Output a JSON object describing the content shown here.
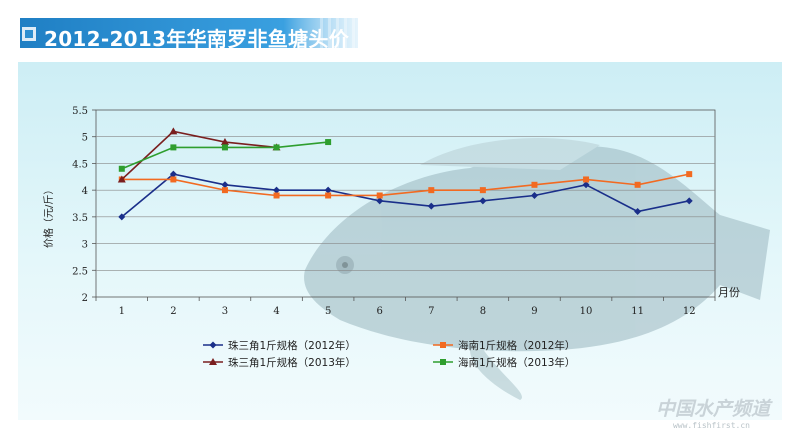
{
  "page": {
    "title": "2012-2013年华南罗非鱼塘头价",
    "watermark": "中国水产频道",
    "watermark_url": "www.fishfirst.cn"
  },
  "colors": {
    "banner": "#2e8fd0",
    "banner_light": "#8fc9ee",
    "panel": "#d4f0f6",
    "axis": "#555555",
    "grid": "#888888"
  },
  "chart_data": {
    "type": "line",
    "title": "2012-2013年华南罗非鱼塘头价",
    "xlabel": "月份",
    "ylabel": "价格（元/斤）",
    "x": [
      1,
      2,
      3,
      4,
      5,
      6,
      7,
      8,
      9,
      10,
      11,
      12
    ],
    "x_tick_labels": [
      "1",
      "2",
      "3",
      "4",
      "5",
      "6",
      "7",
      "8",
      "9",
      "10",
      "11",
      "12"
    ],
    "ylim": [
      2,
      5.5
    ],
    "y_ticks": [
      2,
      2.5,
      3,
      3.5,
      4,
      4.5,
      5,
      5.5
    ],
    "y_tick_labels": [
      "2",
      "2.5",
      "3",
      "3.5",
      "4",
      "4.5",
      "5",
      "5.5"
    ],
    "grid": true,
    "legend_position": "bottom",
    "series": [
      {
        "name": "珠三角1斤规格（2012年）",
        "color": "#1a2f8a",
        "marker": "diamond",
        "values": [
          3.5,
          4.3,
          4.1,
          4.0,
          4.0,
          3.8,
          3.7,
          3.8,
          3.9,
          4.1,
          3.6,
          3.8
        ]
      },
      {
        "name": "海南1斤规格（2012年）",
        "color": "#f26a21",
        "marker": "square",
        "values": [
          4.2,
          4.2,
          4.0,
          3.9,
          3.9,
          3.9,
          4.0,
          4.0,
          4.1,
          4.2,
          4.1,
          4.3
        ]
      },
      {
        "name": "珠三角1斤规格（2013年）",
        "color": "#7a1f1f",
        "marker": "triangle",
        "values": [
          4.2,
          5.1,
          4.9,
          4.8,
          null,
          null,
          null,
          null,
          null,
          null,
          null,
          null
        ]
      },
      {
        "name": "海南1斤规格（2013年）",
        "color": "#2e9e2e",
        "marker": "square",
        "values": [
          4.4,
          4.8,
          4.8,
          4.8,
          4.9,
          null,
          null,
          null,
          null,
          null,
          null,
          null
        ]
      }
    ]
  }
}
